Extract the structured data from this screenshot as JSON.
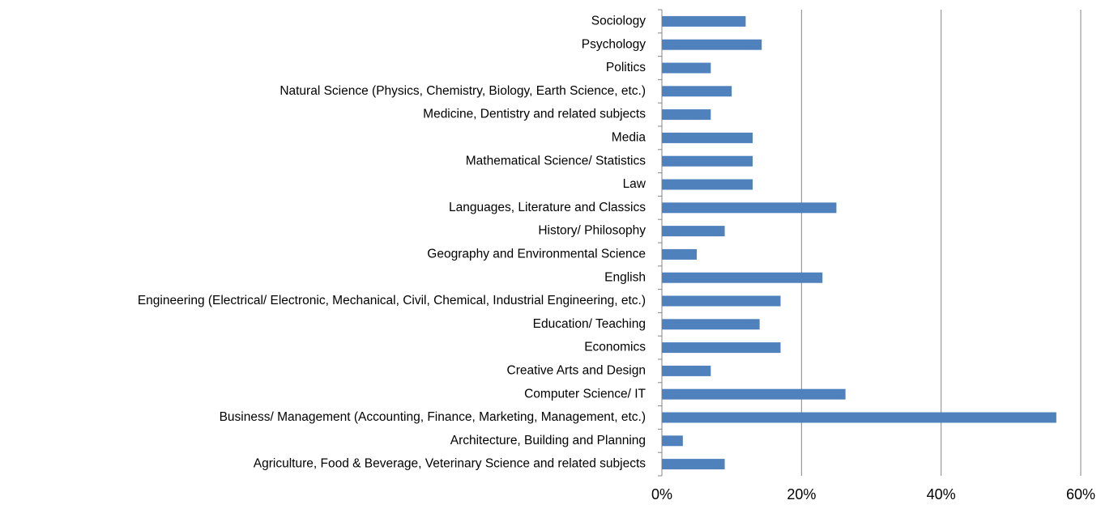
{
  "chart_data": {
    "type": "barh",
    "categories": [
      "Agriculture, Food & Beverage, Veterinary Science and related subjects",
      "Architecture, Building and Planning",
      "Business/ Management (Accounting, Finance, Marketing, Management, etc.)",
      "Computer Science/ IT",
      "Creative Arts and Design",
      "Economics",
      "Education/ Teaching",
      "Engineering (Electrical/ Electronic, Mechanical, Civil, Chemical, Industrial Engineering, etc.)",
      "English",
      "Geography and Environmental Science",
      "History/ Philosophy",
      "Languages, Literature and Classics",
      "Law",
      "Mathematical Science/ Statistics",
      "Media",
      "Medicine, Dentistry and related subjects",
      "Natural Science (Physics, Chemistry, Biology, Earth Science, etc.)",
      "Politics",
      "Psychology",
      "Sociology"
    ],
    "values": [
      9,
      3,
      56.5,
      26.3,
      7,
      17,
      14,
      17,
      23,
      5,
      9,
      25,
      13,
      13,
      13,
      7,
      10,
      7,
      14.3,
      12
    ],
    "color": "#4f81bd",
    "xlim": [
      0,
      60
    ],
    "xticks": [
      {
        "value": 0,
        "label": "0%"
      },
      {
        "value": 20,
        "label": "20%"
      },
      {
        "value": 40,
        "label": "40%"
      },
      {
        "value": 60,
        "label": "60%"
      }
    ],
    "grid": true
  }
}
